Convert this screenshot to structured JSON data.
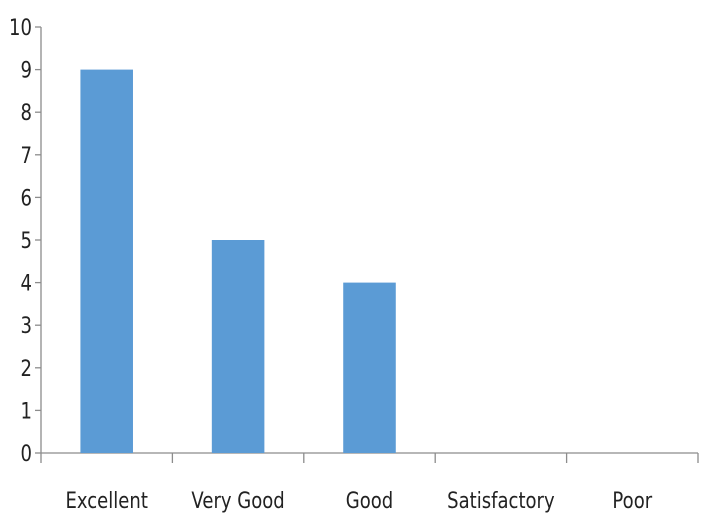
{
  "chart_data": {
    "type": "bar",
    "title": "",
    "xlabel": "",
    "ylabel": "",
    "categories": [
      "Excellent",
      "Very Good",
      "Good",
      "Satisfactory",
      "Poor"
    ],
    "values": [
      9,
      5,
      4,
      0,
      0
    ],
    "ylim": [
      0,
      10
    ],
    "yticks": [
      0,
      1,
      2,
      3,
      4,
      5,
      6,
      7,
      8,
      9,
      10
    ],
    "grid": false,
    "legend": "none",
    "bar_color": "#5b9bd5",
    "axis_color": "#8c8c8c",
    "text_color": "#222222"
  }
}
